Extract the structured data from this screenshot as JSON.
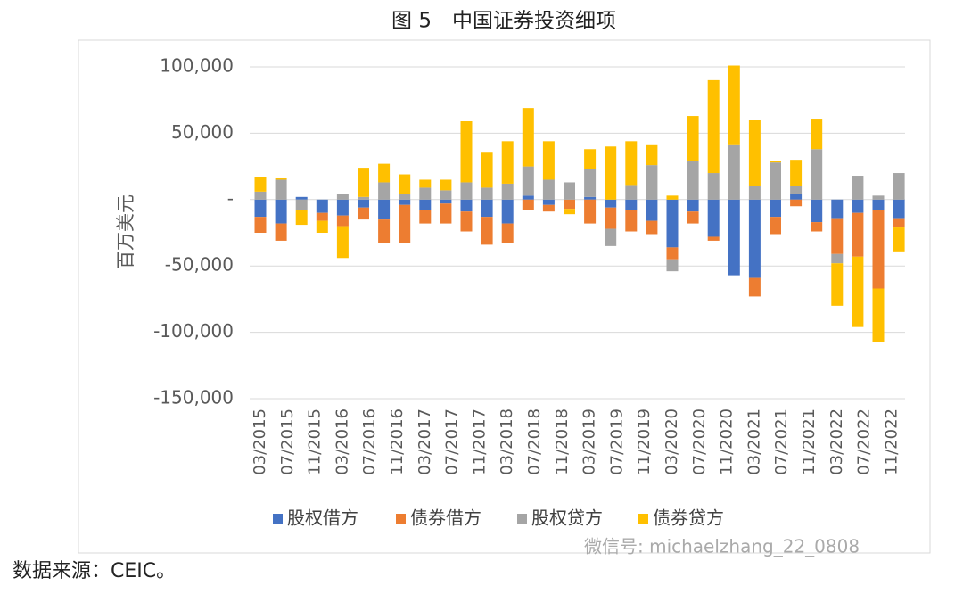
{
  "title": "图 5　中国证券投资细项",
  "source": "数据来源：CEIC。",
  "watermark": "微信号: michaelzhang_22_0808",
  "chart_data": {
    "type": "bar",
    "stacked": true,
    "ylabel": "百万美元",
    "ylim": [
      -150000,
      100000
    ],
    "yticks": [
      {
        "value": -150000,
        "label": "-150,000"
      },
      {
        "value": -100000,
        "label": "-100,000"
      },
      {
        "value": -50000,
        "label": "-50,000"
      },
      {
        "value": 0,
        "label": "-"
      },
      {
        "value": 50000,
        "label": "50,000"
      },
      {
        "value": 100000,
        "label": "100,000"
      }
    ],
    "grid": true,
    "legend": "bottom",
    "categories": [
      "03/2015",
      null,
      null,
      null,
      "07/2015",
      null,
      null,
      null,
      "11/2015",
      null,
      null,
      null,
      "03/2016",
      null,
      null,
      null,
      "07/2016",
      null,
      null,
      null,
      "11/2016",
      null,
      null,
      null,
      "03/2017",
      null,
      null,
      null,
      "07/2017",
      null,
      null,
      null,
      "11/2017",
      null,
      null,
      null,
      "03/2018",
      null,
      null,
      null,
      "07/2018",
      null,
      null,
      null,
      "11/2018",
      null,
      null,
      null,
      "03/2019",
      null,
      null,
      null,
      "07/2019",
      null,
      null,
      null,
      "11/2019",
      null,
      null,
      null,
      "03/2020",
      null,
      null,
      null,
      "07/2020",
      null,
      null,
      null,
      "11/2020",
      null,
      null,
      null,
      "03/2021",
      null,
      null,
      null,
      "07/2021",
      null,
      null,
      null,
      "11/2021",
      null,
      null,
      null,
      "03/2022",
      null,
      null,
      null,
      "07/2022",
      null,
      null,
      null,
      "11/2022",
      null,
      null,
      null
    ],
    "series": [
      {
        "name": "股权借方",
        "color": "#4472c4",
        "values": [
          -13000,
          null,
          null,
          -18000,
          null,
          null,
          2000,
          null,
          null,
          -10000,
          null,
          null,
          -12000,
          null,
          null,
          -6000,
          null,
          null,
          -15000,
          null,
          null,
          -4000,
          null,
          null,
          -8000,
          null,
          null,
          -3000,
          null,
          null,
          -9000,
          null,
          null,
          -13000,
          null,
          null,
          -18000,
          null,
          null,
          3000,
          null,
          null,
          -4000,
          null,
          null,
          0,
          null,
          null,
          2000,
          null,
          null,
          -6000,
          null,
          null,
          -8000,
          null,
          null,
          -16000,
          null,
          null,
          -36000,
          null,
          null,
          -9000,
          null,
          null,
          -28000,
          null,
          null,
          -57000,
          null,
          null,
          -59000,
          null,
          null,
          -13000,
          null,
          null,
          4000,
          null,
          null,
          -17000,
          null,
          null,
          -14000,
          null,
          null,
          -10000,
          null,
          null,
          -8000,
          null,
          null,
          -14000,
          null,
          null
        ]
      },
      {
        "name": "债券借方",
        "color": "#ed7d31",
        "values": [
          -12000,
          null,
          null,
          -13000,
          null,
          null,
          0,
          null,
          null,
          -6000,
          null,
          null,
          -8000,
          null,
          null,
          -9000,
          null,
          null,
          -18000,
          null,
          null,
          -29000,
          null,
          null,
          -10000,
          null,
          null,
          -15000,
          null,
          null,
          -15000,
          null,
          null,
          -21000,
          null,
          null,
          -15000,
          null,
          null,
          -8000,
          null,
          null,
          -5000,
          null,
          null,
          -7000,
          null,
          null,
          -18000,
          null,
          null,
          -16000,
          null,
          null,
          -16000,
          null,
          null,
          -10000,
          null,
          null,
          -9000,
          null,
          null,
          -9000,
          null,
          null,
          -3000,
          null,
          null,
          0,
          null,
          null,
          -14000,
          null,
          null,
          -13000,
          null,
          null,
          -5000,
          null,
          null,
          -7000,
          null,
          null,
          -27000,
          null,
          null,
          -33000,
          null,
          null,
          -59000,
          null,
          null,
          -7000,
          null,
          null
        ]
      },
      {
        "name": "股权贷方",
        "color": "#a5a5a5",
        "values": [
          6000,
          null,
          null,
          15000,
          null,
          null,
          -8000,
          null,
          null,
          0,
          null,
          null,
          4000,
          null,
          null,
          2000,
          null,
          null,
          13000,
          null,
          null,
          4000,
          null,
          null,
          9000,
          null,
          null,
          7000,
          null,
          null,
          13000,
          null,
          null,
          9000,
          null,
          null,
          12000,
          null,
          null,
          22000,
          null,
          null,
          15000,
          null,
          null,
          13000,
          null,
          null,
          21000,
          null,
          null,
          -13000,
          null,
          null,
          11000,
          null,
          null,
          26000,
          null,
          null,
          -9000,
          null,
          null,
          29000,
          null,
          null,
          20000,
          null,
          null,
          41000,
          null,
          null,
          10000,
          null,
          null,
          28000,
          null,
          null,
          6000,
          null,
          null,
          38000,
          null,
          null,
          -7000,
          null,
          null,
          18000,
          null,
          null,
          3000,
          null,
          null,
          20000,
          null,
          null
        ]
      },
      {
        "name": "债券贷方",
        "color": "#ffc000",
        "values": [
          11000,
          null,
          null,
          1000,
          null,
          null,
          -11000,
          null,
          null,
          -9000,
          null,
          null,
          -24000,
          null,
          null,
          22000,
          null,
          null,
          14000,
          null,
          null,
          15000,
          null,
          null,
          6000,
          null,
          null,
          8000,
          null,
          null,
          46000,
          null,
          null,
          27000,
          null,
          null,
          32000,
          null,
          null,
          44000,
          null,
          null,
          29000,
          null,
          null,
          -4000,
          null,
          null,
          15000,
          null,
          null,
          40000,
          null,
          null,
          33000,
          null,
          null,
          15000,
          null,
          null,
          3000,
          null,
          null,
          34000,
          null,
          null,
          70000,
          null,
          null,
          60000,
          null,
          null,
          50000,
          null,
          null,
          1000,
          null,
          null,
          20000,
          null,
          null,
          23000,
          null,
          null,
          -32000,
          null,
          null,
          -53000,
          null,
          null,
          -40000,
          null,
          null,
          -18000,
          null,
          null
        ]
      }
    ]
  }
}
